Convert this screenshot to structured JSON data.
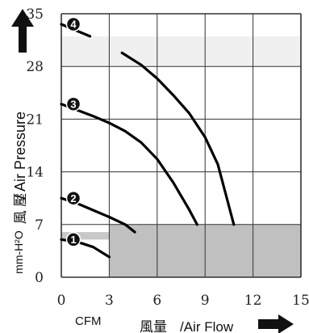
{
  "chart_data": {
    "type": "line",
    "ylabel_cn": "風 壓",
    "ylabel": "/ Air Pressure",
    "yunit": "mm-H²O",
    "xunit": "CFM",
    "xlabel_cn": "風量",
    "xlabel": "/Air Flow",
    "xticks": [
      "0",
      "3",
      "6",
      "9",
      "12",
      "15"
    ],
    "yticks": [
      "0",
      "7",
      "14",
      "21",
      "28",
      "35"
    ],
    "xlim": [
      0,
      15
    ],
    "ylim": [
      0,
      35
    ],
    "grid": true,
    "shaded_regions": [
      {
        "x": [
          0,
          15
        ],
        "y": [
          28,
          32
        ],
        "color": "#f0f0f0"
      },
      {
        "x": [
          0,
          3
        ],
        "y": [
          5,
          6
        ],
        "color": "#c8c8c8"
      },
      {
        "x": [
          3,
          15
        ],
        "y": [
          0,
          7
        ],
        "color": "#c0c0c0"
      }
    ],
    "series": [
      {
        "name": "1",
        "x": [
          0.0,
          1.0,
          2.0,
          3.0
        ],
        "y": [
          5.0,
          4.7,
          4.0,
          2.7
        ]
      },
      {
        "name": "2",
        "x": [
          0.0,
          1.0,
          2.0,
          3.0,
          4.0,
          4.6
        ],
        "y": [
          10.5,
          9.8,
          8.9,
          8.0,
          7.0,
          6.0
        ]
      },
      {
        "name": "3",
        "x": [
          0.0,
          1.0,
          2.0,
          3.0,
          4.0,
          5.0,
          6.0,
          7.0,
          8.0,
          8.5
        ],
        "y": [
          23.0,
          22.2,
          21.4,
          20.5,
          19.4,
          17.9,
          15.7,
          12.6,
          9.0,
          7.0
        ]
      },
      {
        "name": "4",
        "x": [
          0.0,
          1.0,
          1.8
        ],
        "y": [
          33.6,
          32.7,
          32.0
        ],
        "x2": [
          3.8,
          5.0,
          6.0,
          7.0,
          8.0,
          9.0,
          9.8,
          10.3,
          10.8
        ],
        "y2": [
          29.8,
          28.2,
          26.4,
          24.2,
          21.8,
          18.6,
          15.0,
          11.0,
          7.0
        ]
      }
    ],
    "colors": {
      "line": "#000000",
      "grid": "#333333",
      "badge": "#111111",
      "arrow": "#111111"
    }
  }
}
